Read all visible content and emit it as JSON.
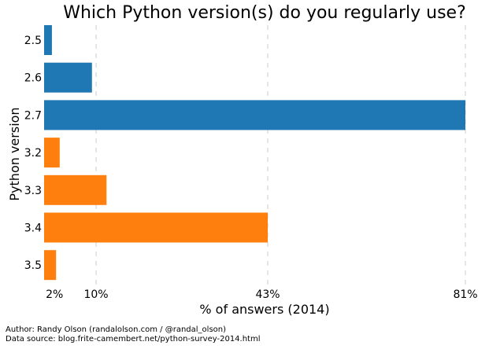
{
  "chart_data": {
    "type": "bar",
    "orientation": "horizontal",
    "title": "Which Python version(s) do you regularly use?",
    "xlabel": "% of answers (2014)",
    "ylabel": "Python version",
    "categories": [
      "2.5",
      "2.6",
      "2.7",
      "3.2",
      "3.3",
      "3.4",
      "3.5"
    ],
    "values": [
      1.5,
      9.2,
      81,
      3,
      12,
      43,
      2.3
    ],
    "bar_colors": [
      "#1f77b4",
      "#1f77b4",
      "#1f77b4",
      "#ff7f0e",
      "#ff7f0e",
      "#ff7f0e",
      "#ff7f0e"
    ],
    "xticks": [
      {
        "value": 2,
        "label": "2%"
      },
      {
        "value": 10,
        "label": "10%"
      },
      {
        "value": 43,
        "label": "43%"
      },
      {
        "value": 81,
        "label": "81%"
      }
    ],
    "gridlines_at": [
      10,
      43,
      81
    ],
    "xlim": [
      0,
      81
    ],
    "grid_color": "#cccccc"
  },
  "credits": {
    "author": "Author: Randy Olson (randalolson.com / @randal_olson)",
    "source": "Data source: blog.frite-camembert.net/python-survey-2014.html"
  }
}
